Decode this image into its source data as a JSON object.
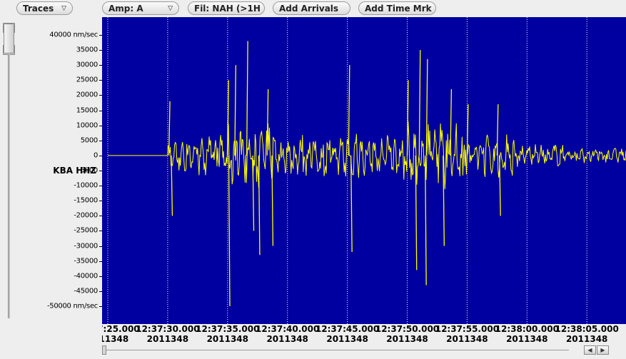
{
  "toolbar": {
    "traces_label": "Traces",
    "amp_label": "Amp: A",
    "filter_label": "Fil: NAH (>1H",
    "add_arrivals_label": "Add Arrivals",
    "add_time_mark_label": "Add Time Mrk"
  },
  "channel_label": "KBA HHZ",
  "colors": {
    "plot_bg": "#0000a0",
    "trace": "#ffff00",
    "gridline": "#ffffff"
  },
  "chart_data": {
    "type": "line",
    "y_unit_label": "nm/sec",
    "ylim": [
      -50000,
      40000
    ],
    "y_ticks": [
      "40000 nm/sec",
      "35000",
      "30000",
      "25000",
      "20000",
      "15000",
      "10000",
      "5000",
      "0",
      "-5000",
      "-10000",
      "-15000",
      "-20000",
      "-25000",
      "-30000",
      "-35000",
      "-40000",
      "-45000",
      "-50000 nm/sec"
    ],
    "y_tick_values": [
      40000,
      35000,
      30000,
      25000,
      20000,
      15000,
      10000,
      5000,
      0,
      -5000,
      -10000,
      -15000,
      -20000,
      -25000,
      -30000,
      -35000,
      -40000,
      -45000,
      -50000
    ],
    "x_range_seconds": [
      25.0,
      112.0
    ],
    "x_tick_seconds": [
      25,
      30,
      35,
      40,
      45,
      50,
      55,
      60,
      65
    ],
    "x_ticks": [
      {
        "time": "12:37:25.000",
        "date": "2011348"
      },
      {
        "time": "12:37:30.000",
        "date": "2011348"
      },
      {
        "time": "12:37:35.000",
        "date": "2011348"
      },
      {
        "time": "12:37:40.000",
        "date": "2011348"
      },
      {
        "time": "12:37:45.000",
        "date": "2011348"
      },
      {
        "time": "12:37:50.000",
        "date": "2011348"
      },
      {
        "time": "12:37:55.000",
        "date": "2011348"
      },
      {
        "time": "12:38:00.000",
        "date": "2011348"
      },
      {
        "time": "12:38:05.000",
        "date": "2011348"
      }
    ],
    "grid": true,
    "onset_seconds": 30.0,
    "peaks": [
      {
        "t": 30.1,
        "v": 18000
      },
      {
        "t": 30.3,
        "v": -20000
      },
      {
        "t": 35.0,
        "v": 25000
      },
      {
        "t": 35.1,
        "v": -50000
      },
      {
        "t": 35.6,
        "v": 30000
      },
      {
        "t": 36.6,
        "v": 38000
      },
      {
        "t": 37.1,
        "v": -25000
      },
      {
        "t": 37.6,
        "v": -33000
      },
      {
        "t": 38.3,
        "v": 22000
      },
      {
        "t": 38.7,
        "v": -30000
      },
      {
        "t": 45.1,
        "v": 30000
      },
      {
        "t": 45.3,
        "v": -32000
      },
      {
        "t": 50.0,
        "v": 25000
      },
      {
        "t": 50.7,
        "v": -38000
      },
      {
        "t": 51.0,
        "v": 35000
      },
      {
        "t": 51.5,
        "v": -43000
      },
      {
        "t": 51.6,
        "v": 32000
      },
      {
        "t": 53.0,
        "v": -30000
      },
      {
        "t": 53.6,
        "v": 22000
      },
      {
        "t": 55.0,
        "v": 17000
      },
      {
        "t": 57.5,
        "v": 17000
      },
      {
        "t": 57.7,
        "v": -20000
      }
    ]
  }
}
